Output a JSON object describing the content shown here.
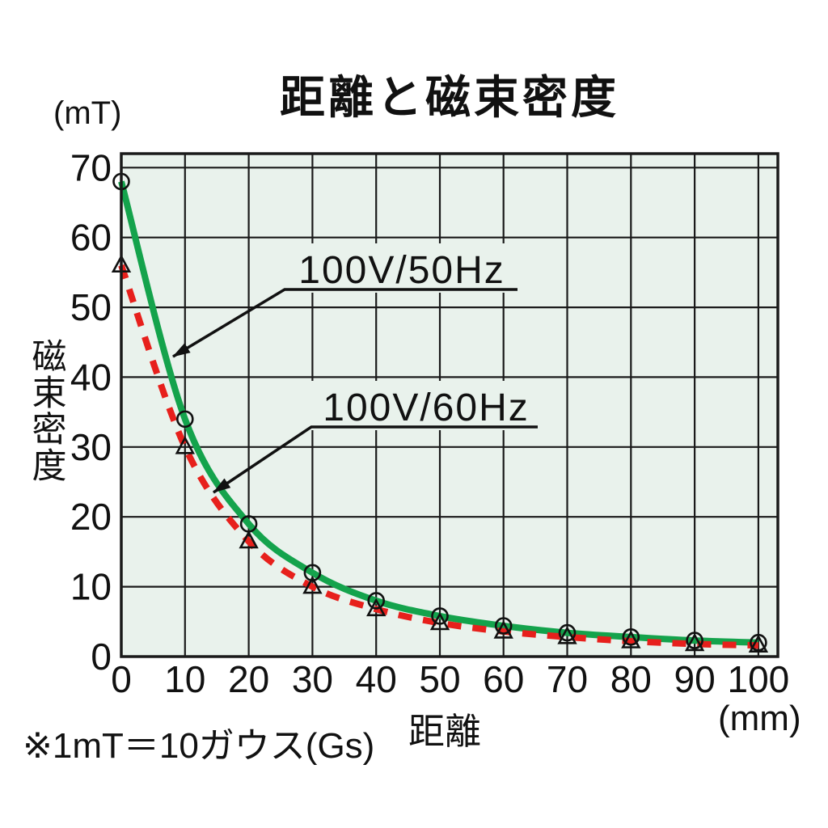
{
  "title": "距離と磁束密度",
  "y_axis": {
    "unit": "(mT)",
    "label": "磁束密度",
    "ticks": [
      70,
      60,
      50,
      40,
      30,
      20,
      10,
      0
    ]
  },
  "x_axis": {
    "unit": "(mm)",
    "label": "距離",
    "ticks": [
      0,
      10,
      20,
      30,
      40,
      50,
      60,
      70,
      80,
      90,
      100
    ]
  },
  "note": "※1mT＝10ガウス(Gs)",
  "colors": {
    "canvas_bg": "#ffffff",
    "plot_bg": "#e9f2ec",
    "grid": "#1a1a1a",
    "text": "#111111",
    "series_50hz": "#14a34c",
    "series_60hz": "#e7201c"
  },
  "chart_data": {
    "type": "line",
    "title": "距離と磁束密度",
    "xlabel": "距離 (mm)",
    "ylabel": "磁束密度 (mT)",
    "xlim": [
      0,
      103
    ],
    "ylim": [
      0,
      72
    ],
    "grid": true,
    "legend_position": "inline-callouts",
    "x": [
      0,
      10,
      20,
      30,
      40,
      50,
      60,
      70,
      80,
      90,
      100
    ],
    "series": [
      {
        "name": "100V/50Hz",
        "color": "#14a34c",
        "line_style": "solid",
        "marker": "circle",
        "values": [
          68,
          34,
          19,
          12,
          8,
          5.8,
          4.4,
          3.4,
          2.8,
          2.3,
          2.0
        ]
      },
      {
        "name": "100V/60Hz",
        "color": "#e7201c",
        "line_style": "dashed",
        "marker": "triangle",
        "values": [
          56,
          30,
          16.5,
          10,
          6.8,
          4.8,
          3.6,
          2.8,
          2.2,
          1.8,
          1.6
        ]
      }
    ]
  }
}
